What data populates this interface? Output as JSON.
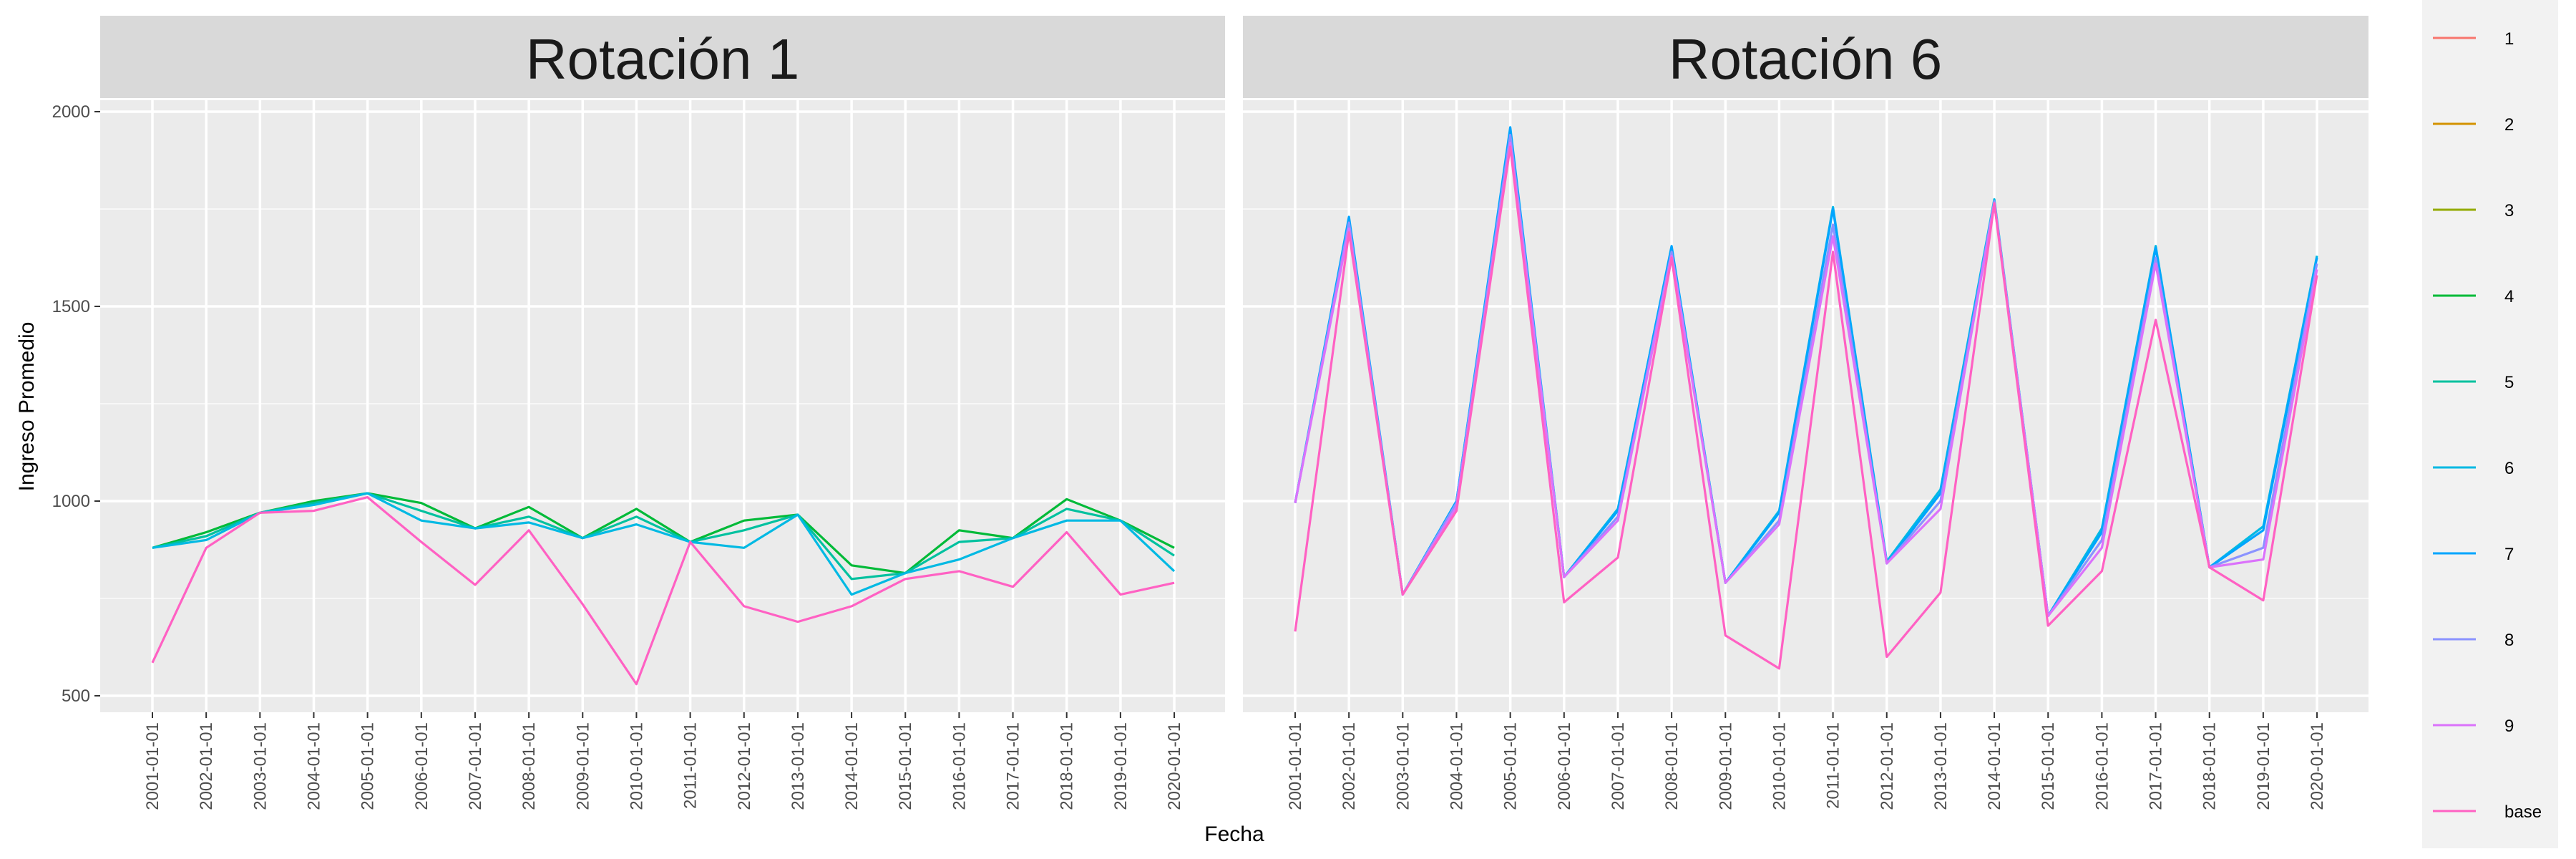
{
  "chart_data": {
    "type": "line",
    "xlabel": "Fecha",
    "ylabel": "Ingreso Promedio",
    "ylim": [
      400,
      2150
    ],
    "y_ticks": [
      500,
      1000,
      1500,
      2000
    ],
    "grid": true,
    "legend_placement": "right",
    "categories": [
      "2001-01-01",
      "2002-01-01",
      "2003-01-01",
      "2004-01-01",
      "2005-01-01",
      "2006-01-01",
      "2007-01-01",
      "2008-01-01",
      "2009-01-01",
      "2010-01-01",
      "2011-01-01",
      "2012-01-01",
      "2013-01-01",
      "2014-01-01",
      "2015-01-01",
      "2016-01-01",
      "2017-01-01",
      "2018-01-01",
      "2019-01-01",
      "2020-01-01"
    ],
    "legend": [
      {
        "label": "1",
        "color": "#F8766D"
      },
      {
        "label": "2",
        "color": "#D39200"
      },
      {
        "label": "3",
        "color": "#93AA00"
      },
      {
        "label": "4",
        "color": "#00BA38"
      },
      {
        "label": "5",
        "color": "#00C19F"
      },
      {
        "label": "6",
        "color": "#00B9E3"
      },
      {
        "label": "7",
        "color": "#00A5FF"
      },
      {
        "label": "8",
        "color": "#8B93FF"
      },
      {
        "label": "9",
        "color": "#DB72FB"
      },
      {
        "label": "base",
        "color": "#FF61C3"
      }
    ],
    "panels": [
      {
        "title": "Rotación 1",
        "series": [
          {
            "name": "4",
            "color": "#00BA38",
            "values": [
              880,
              920,
              970,
              1000,
              1020,
              995,
              930,
              985,
              905,
              980,
              895,
              950,
              965,
              835,
              815,
              925,
              905,
              1005,
              950,
              880
            ]
          },
          {
            "name": "5",
            "color": "#00C19F",
            "values": [
              880,
              910,
              970,
              995,
              1020,
              975,
              930,
              960,
              905,
              960,
              895,
              925,
              965,
              800,
              815,
              895,
              905,
              980,
              950,
              860
            ]
          },
          {
            "name": "6",
            "color": "#00B9E3",
            "values": [
              880,
              900,
              970,
              990,
              1020,
              950,
              930,
              945,
              905,
              940,
              895,
              880,
              965,
              760,
              815,
              850,
              905,
              950,
              950,
              820
            ]
          },
          {
            "name": "base",
            "color": "#FF61C3",
            "values": [
              585,
              880,
              970,
              975,
              1010,
              895,
              785,
              925,
              735,
              530,
              895,
              730,
              690,
              730,
              800,
              820,
              780,
              920,
              760,
              790
            ]
          }
        ]
      },
      {
        "title": "Rotación 6",
        "series": [
          {
            "name": "6",
            "color": "#00B9E3",
            "values": [
              995,
              1720,
              760,
              1000,
              1950,
              805,
              980,
              1650,
              790,
              975,
              1755,
              845,
              1030,
              1775,
              705,
              930,
              1655,
              830,
              935,
              1630
            ]
          },
          {
            "name": "7",
            "color": "#00A5FF",
            "values": [
              995,
              1730,
              760,
              1000,
              1960,
              805,
              975,
              1655,
              790,
              970,
              1750,
              840,
              1020,
              1770,
              705,
              920,
              1650,
              830,
              925,
              1625
            ]
          },
          {
            "name": "8",
            "color": "#8B93FF",
            "values": [
              995,
              1715,
              760,
              995,
              1940,
              805,
              960,
              1640,
              790,
              950,
              1710,
              840,
              1000,
              1770,
              705,
              900,
              1625,
              830,
              880,
              1610
            ]
          },
          {
            "name": "9",
            "color": "#DB72FB",
            "values": [
              995,
              1700,
              760,
              985,
              1920,
              805,
              950,
              1630,
              790,
              940,
              1680,
              840,
              980,
              1765,
              705,
              880,
              1610,
              830,
              850,
              1595
            ]
          },
          {
            "name": "base",
            "color": "#FF61C3",
            "values": [
              665,
              1690,
              760,
              975,
              1910,
              740,
              855,
              1625,
              655,
              570,
              1640,
              600,
              765,
              1765,
              680,
              820,
              1465,
              830,
              745,
              1580
            ]
          }
        ]
      }
    ]
  }
}
